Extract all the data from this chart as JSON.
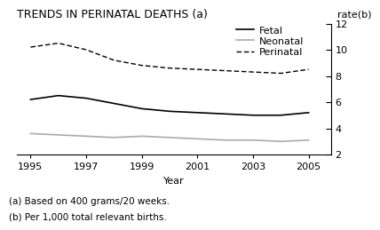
{
  "title": "TRENDS IN PERINATAL DEATHS (a)",
  "xlabel": "Year",
  "ylabel": "rate(b)",
  "footnote1": "(a) Based on 400 grams/20 weeks.",
  "footnote2": "(b) Per 1,000 total relevant births.",
  "years": [
    1995,
    1996,
    1997,
    1998,
    1999,
    2000,
    2001,
    2002,
    2003,
    2004,
    2005
  ],
  "fetal": [
    6.2,
    6.5,
    6.3,
    5.9,
    5.5,
    5.3,
    5.2,
    5.1,
    5.0,
    5.0,
    5.2
  ],
  "neonatal": [
    3.6,
    3.5,
    3.4,
    3.3,
    3.4,
    3.3,
    3.2,
    3.1,
    3.1,
    3.0,
    3.1
  ],
  "perinatal": [
    10.2,
    10.5,
    10.0,
    9.2,
    8.8,
    8.6,
    8.5,
    8.4,
    8.3,
    8.2,
    8.5
  ],
  "fetal_color": "#000000",
  "neonatal_color": "#aaaaaa",
  "perinatal_color": "#000000",
  "ylim": [
    2,
    12
  ],
  "yticks": [
    2,
    4,
    6,
    8,
    10,
    12
  ],
  "xlim": [
    1994.5,
    2005.8
  ],
  "xticks": [
    1995,
    1997,
    1999,
    2001,
    2003,
    2005
  ],
  "legend_fetal": "Fetal",
  "legend_neonatal": "Neonatal",
  "legend_perinatal": "Perinatal",
  "title_fontsize": 9,
  "axis_fontsize": 8,
  "legend_fontsize": 8,
  "footnote_fontsize": 7.5
}
